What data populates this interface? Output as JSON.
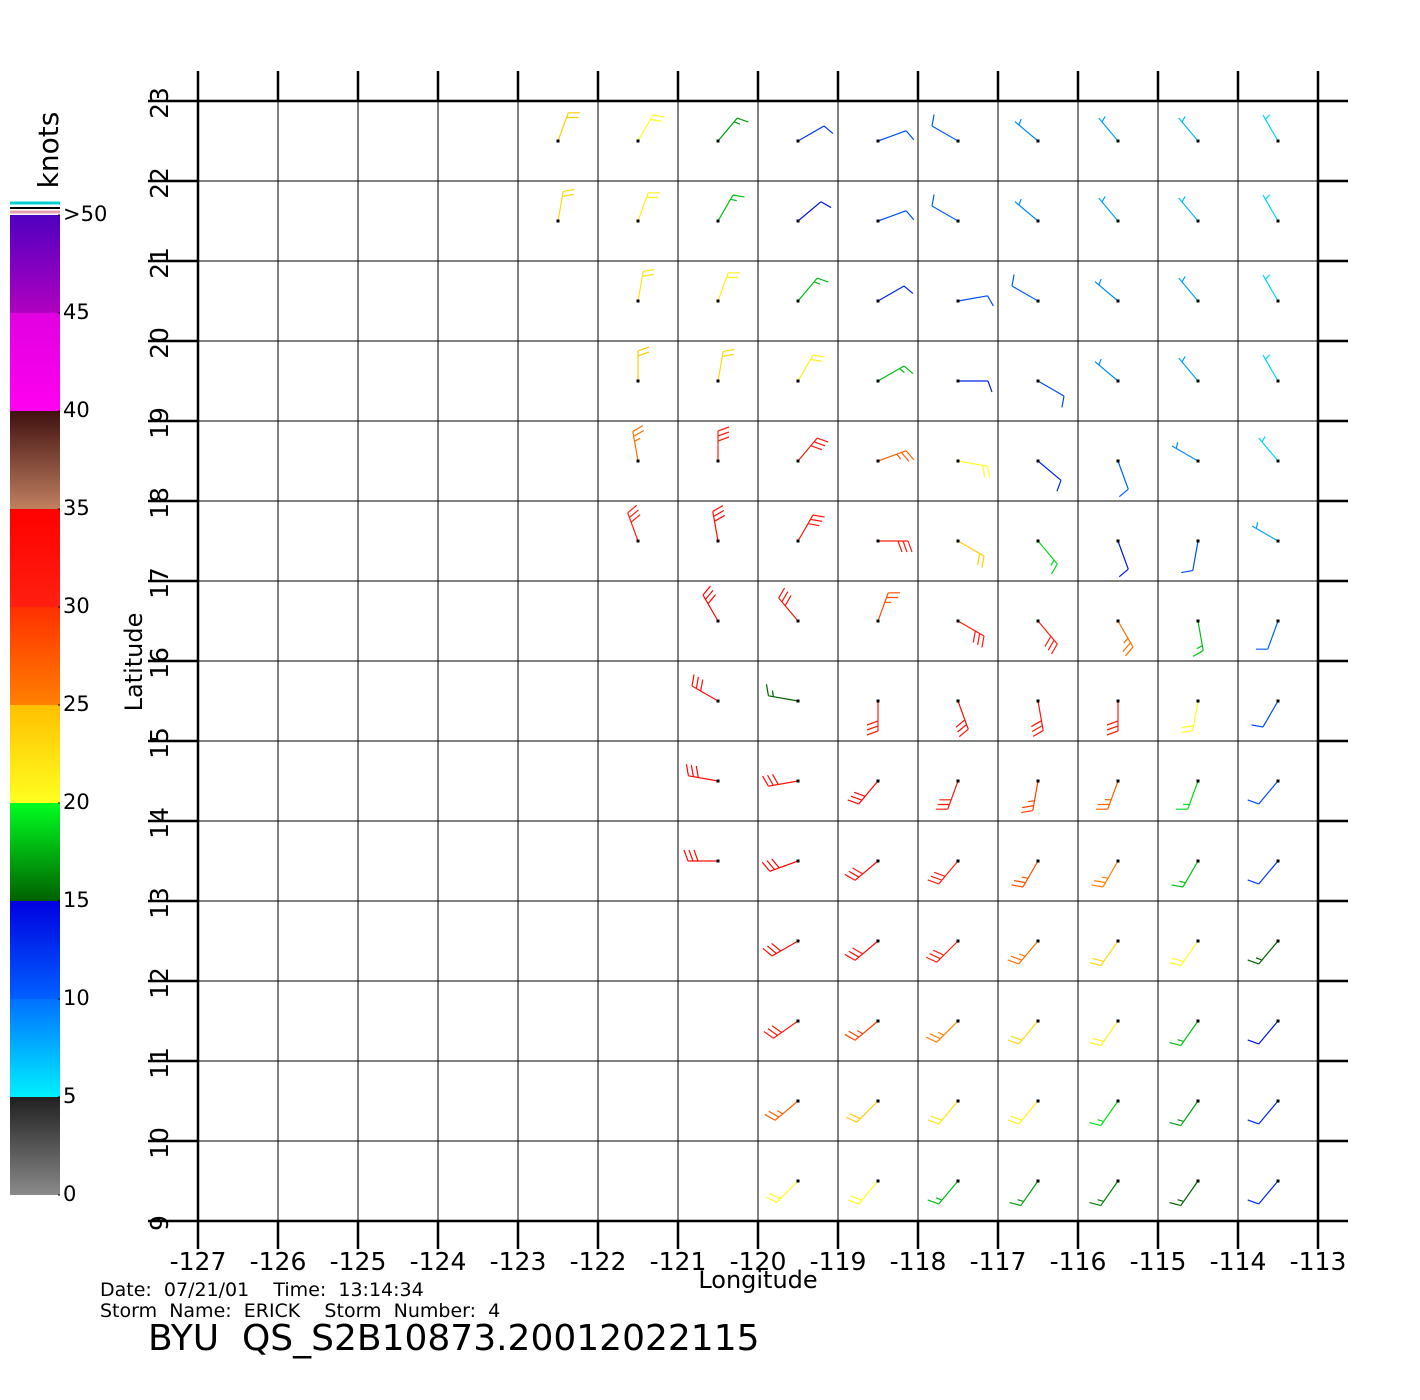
{
  "chart_data": {
    "type": "wind_barbs",
    "xlabel": "Longitude",
    "ylabel": "Latitude",
    "xlim": [
      -127,
      -113
    ],
    "ylim": [
      9,
      23
    ],
    "xticks": [
      -127,
      -126,
      -125,
      -124,
      -123,
      -122,
      -121,
      -120,
      -119,
      -118,
      -117,
      -116,
      -115,
      -114,
      -113
    ],
    "yticks": [
      9,
      10,
      11,
      12,
      13,
      14,
      15,
      16,
      17,
      18,
      19,
      20,
      21,
      22,
      23
    ],
    "grid": true,
    "colorbar": {
      "title": "knots",
      "lim": [
        0,
        50
      ],
      "ticks": [
        0,
        5,
        10,
        15,
        20,
        25,
        30,
        35,
        40,
        45,
        {
          "value": 50,
          "label": ">50"
        }
      ],
      "band_colors": [
        [
          "#8a8a8a",
          "#202020"
        ],
        [
          "#00f0ff",
          "#0070ff"
        ],
        [
          "#0060ff",
          "#0000e0"
        ],
        [
          "#006000",
          "#00ff20"
        ],
        [
          "#ffff20",
          "#ffc000"
        ],
        [
          "#ff8000",
          "#ff3000"
        ],
        [
          "#ff2010",
          "#ff0000"
        ],
        [
          "#c08060",
          "#401010"
        ],
        [
          "#ff00f0",
          "#e000e0"
        ],
        [
          "#b000c0",
          "#5000c0"
        ]
      ]
    },
    "barbs": {
      "lon": [
        -122.5,
        -121.5,
        -120.5,
        -119.5,
        -118.5,
        -117.5,
        -116.5,
        -115.5,
        -114.5,
        -113.5,
        -122.5,
        -121.5,
        -120.5,
        -119.5,
        -118.5,
        -117.5,
        -116.5,
        -115.5,
        -114.5,
        -113.5,
        -121.5,
        -120.5,
        -119.5,
        -118.5,
        -117.5,
        -116.5,
        -115.5,
        -114.5,
        -113.5,
        -121.5,
        -120.5,
        -119.5,
        -118.5,
        -117.5,
        -116.5,
        -115.5,
        -114.5,
        -113.5,
        -121.5,
        -120.5,
        -119.5,
        -118.5,
        -117.5,
        -116.5,
        -115.5,
        -114.5,
        -113.5,
        -121.5,
        -120.5,
        -119.5,
        -118.5,
        -117.5,
        -116.5,
        -115.5,
        -114.5,
        -113.5,
        -120.5,
        -119.5,
        -118.5,
        -117.5,
        -116.5,
        -115.5,
        -114.5,
        -113.5,
        -120.5,
        -119.5,
        -118.5,
        -117.5,
        -116.5,
        -115.5,
        -114.5,
        -113.5,
        -120.5,
        -119.5,
        -118.5,
        -117.5,
        -116.5,
        -115.5,
        -114.5,
        -113.5,
        -120.5,
        -119.5,
        -118.5,
        -117.5,
        -116.5,
        -115.5,
        -114.5,
        -113.5,
        -119.5,
        -118.5,
        -117.5,
        -116.5,
        -115.5,
        -114.5,
        -113.5,
        -119.5,
        -118.5,
        -117.5,
        -116.5,
        -115.5,
        -114.5,
        -113.5,
        -119.5,
        -118.5,
        -117.5,
        -116.5,
        -115.5,
        -114.5,
        -113.5,
        -119.5,
        -118.5,
        -117.5,
        -116.5,
        -115.5,
        -114.5,
        -113.5
      ],
      "lat": [
        22.5,
        22.5,
        22.5,
        22.5,
        22.5,
        22.5,
        22.5,
        22.5,
        22.5,
        22.5,
        21.5,
        21.5,
        21.5,
        21.5,
        21.5,
        21.5,
        21.5,
        21.5,
        21.5,
        21.5,
        20.5,
        20.5,
        20.5,
        20.5,
        20.5,
        20.5,
        20.5,
        20.5,
        20.5,
        19.5,
        19.5,
        19.5,
        19.5,
        19.5,
        19.5,
        19.5,
        19.5,
        19.5,
        18.5,
        18.5,
        18.5,
        18.5,
        18.5,
        18.5,
        18.5,
        18.5,
        18.5,
        17.5,
        17.5,
        17.5,
        17.5,
        17.5,
        17.5,
        17.5,
        17.5,
        17.5,
        16.5,
        16.5,
        16.5,
        16.5,
        16.5,
        16.5,
        16.5,
        16.5,
        15.5,
        15.5,
        15.5,
        15.5,
        15.5,
        15.5,
        15.5,
        15.5,
        14.5,
        14.5,
        14.5,
        14.5,
        14.5,
        14.5,
        14.5,
        14.5,
        13.5,
        13.5,
        13.5,
        13.5,
        13.5,
        13.5,
        13.5,
        13.5,
        12.5,
        12.5,
        12.5,
        12.5,
        12.5,
        12.5,
        12.5,
        11.5,
        11.5,
        11.5,
        11.5,
        11.5,
        11.5,
        11.5,
        10.5,
        10.5,
        10.5,
        10.5,
        10.5,
        10.5,
        10.5,
        9.5,
        9.5,
        9.5,
        9.5,
        9.5,
        9.5,
        9.5
      ],
      "speed": [
        24,
        20,
        17,
        12,
        11,
        10,
        9,
        8,
        7,
        6,
        23,
        21,
        18,
        14,
        11,
        10,
        9,
        8,
        7,
        6,
        22,
        21,
        18,
        13,
        11,
        10,
        9,
        8,
        6,
        24,
        23,
        21,
        18,
        13,
        11,
        9,
        8,
        6,
        26,
        30,
        31,
        27,
        20,
        13,
        10,
        9,
        6,
        30,
        33,
        32,
        30,
        24,
        19,
        14,
        11,
        8,
        34,
        32,
        28,
        31,
        30,
        26,
        18,
        10,
        33,
        15,
        30,
        33,
        32,
        30,
        20,
        11,
        34,
        33,
        34,
        31,
        29,
        27,
        19,
        11,
        33,
        34,
        32,
        30,
        28,
        25,
        18,
        12,
        33,
        32,
        30,
        26,
        23,
        20,
        15,
        31,
        29,
        25,
        23,
        21,
        18,
        14,
        27,
        24,
        22,
        21,
        19,
        17,
        13,
        20,
        20,
        18,
        17,
        16,
        15,
        13
      ],
      "direction": [
        20,
        30,
        40,
        60,
        70,
        300,
        310,
        320,
        320,
        330,
        10,
        20,
        30,
        50,
        70,
        300,
        310,
        320,
        320,
        330,
        10,
        20,
        40,
        60,
        80,
        300,
        310,
        320,
        330,
        0,
        10,
        30,
        60,
        90,
        120,
        310,
        320,
        330,
        350,
        0,
        40,
        70,
        100,
        130,
        160,
        300,
        320,
        340,
        350,
        30,
        90,
        120,
        140,
        160,
        190,
        300,
        330,
        320,
        20,
        120,
        140,
        150,
        170,
        200,
        300,
        280,
        180,
        160,
        170,
        180,
        190,
        210,
        280,
        260,
        220,
        200,
        190,
        200,
        200,
        220,
        270,
        250,
        230,
        220,
        210,
        210,
        210,
        220,
        240,
        230,
        225,
        220,
        215,
        215,
        220,
        235,
        230,
        225,
        220,
        215,
        215,
        220,
        230,
        225,
        220,
        220,
        215,
        215,
        220,
        225,
        220,
        220,
        215,
        215,
        215,
        220
      ]
    }
  },
  "footer": {
    "line1": "Date:  07/21/01    Time:  13:14:34",
    "line2": "Storm  Name:  ERICK    Storm  Number:  4",
    "product": "BYU  QS_S2B10873.20012022115"
  }
}
